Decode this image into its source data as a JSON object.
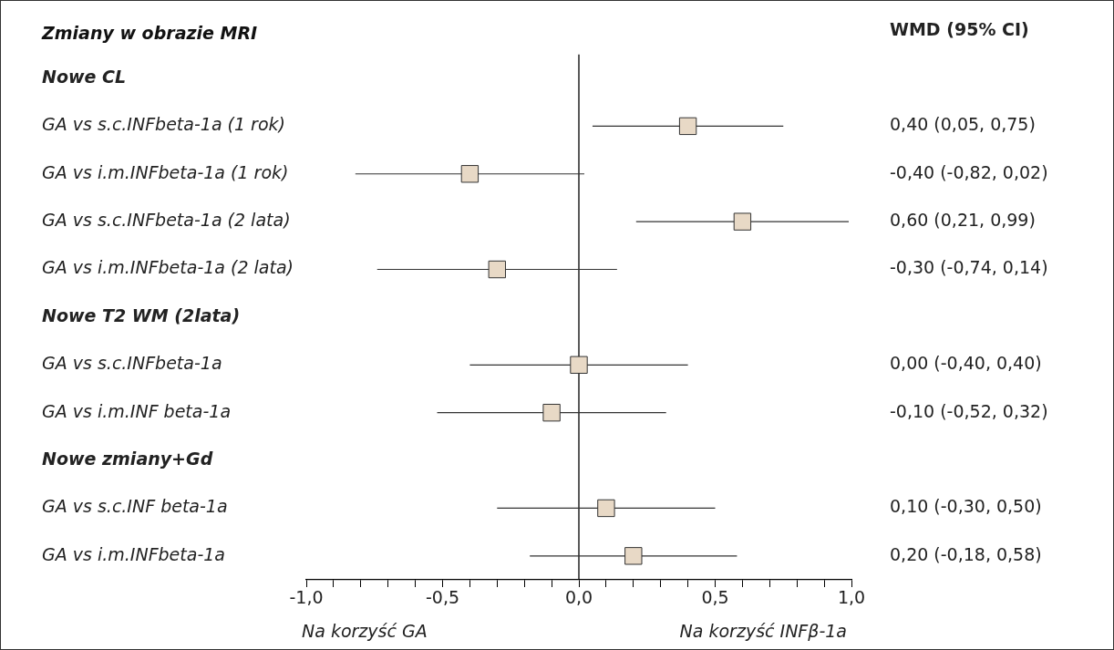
{
  "chart_data": {
    "type": "scatter",
    "orientation": "horizontal",
    "title": "Zmiany w obrazie MRI",
    "categories": [
      "Nowe CL",
      "GA vs s.c.INFbeta-1a (1 rok)",
      "GA vs i.m.INFbeta-1a (1 rok)",
      "GA vs s.c.INFbeta-1a (2 lata)",
      "GA vs i.m.INFbeta-1a (2 lata)",
      "Nowe T2 WM (2lata)",
      "GA vs s.c.INFbeta-1a",
      "GA vs i.m.INF beta-1a",
      "Nowe zmiany+Gd",
      "GA vs s.c.INF beta-1a",
      "GA vs i.m.INFbeta-1a"
    ],
    "series": [
      {
        "color": "#e8d9c6",
        "values": [
          null,
          0.4,
          -0.4,
          0.6,
          -0.3,
          null,
          0.0,
          -0.1,
          null,
          0.1,
          0.2
        ],
        "errors": [
          null,
          [
            0.05,
            0.75
          ],
          [
            -0.82,
            0.02
          ],
          [
            0.21,
            0.99
          ],
          [
            -0.74,
            0.14
          ],
          null,
          [
            -0.4,
            0.4
          ],
          [
            -0.52,
            0.32
          ],
          null,
          [
            -0.3,
            0.5
          ],
          [
            -0.18,
            0.58
          ]
        ],
        "value_labels": [
          null,
          "0,40 (0,05, 0,75)",
          "-0,40 (-0,82, 0,02)",
          "0,60 (0,21, 0,99)",
          "-0,30 (-0,74, 0,14)",
          null,
          "0,00 (-0,40, 0,40)",
          "-0,10 (-0,52, 0,32)",
          null,
          "0,10 (-0,30, 0,50)",
          "0,20 (-0,18, 0,58)"
        ]
      }
    ],
    "xlim": [
      -1,
      1
    ],
    "xticks": [
      {
        "value": -1,
        "label": "-1,0"
      },
      {
        "value": -0.9,
        "label": null
      },
      {
        "value": -0.8,
        "label": null
      },
      {
        "value": -0.7,
        "label": null
      },
      {
        "value": -0.6,
        "label": null
      },
      {
        "value": -0.5,
        "label": "-0,5"
      },
      {
        "value": -0.4,
        "label": null
      },
      {
        "value": -0.3,
        "label": null
      },
      {
        "value": -0.2,
        "label": null
      },
      {
        "value": -0.1,
        "label": null
      },
      {
        "value": 0,
        "label": "0,0"
      },
      {
        "value": 0.1,
        "label": null
      },
      {
        "value": 0.2,
        "label": null
      },
      {
        "value": 0.3,
        "label": null
      },
      {
        "value": 0.4,
        "label": null
      },
      {
        "value": 0.5,
        "label": "0,5"
      },
      {
        "value": 0.6,
        "label": null
      },
      {
        "value": 0.7,
        "label": null
      },
      {
        "value": 0.8,
        "label": null
      },
      {
        "value": 0.9,
        "label": null
      },
      {
        "value": 1,
        "label": "1,0"
      }
    ],
    "ref_lines": [
      {
        "axis": "x",
        "value": 0,
        "color": "#000000"
      }
    ],
    "annotations": [
      "WMD (95% CI)",
      "Na korzyść GA",
      "Na korzyść INFβ-1a"
    ],
    "marker": "square",
    "grid": false,
    "legend": false
  }
}
